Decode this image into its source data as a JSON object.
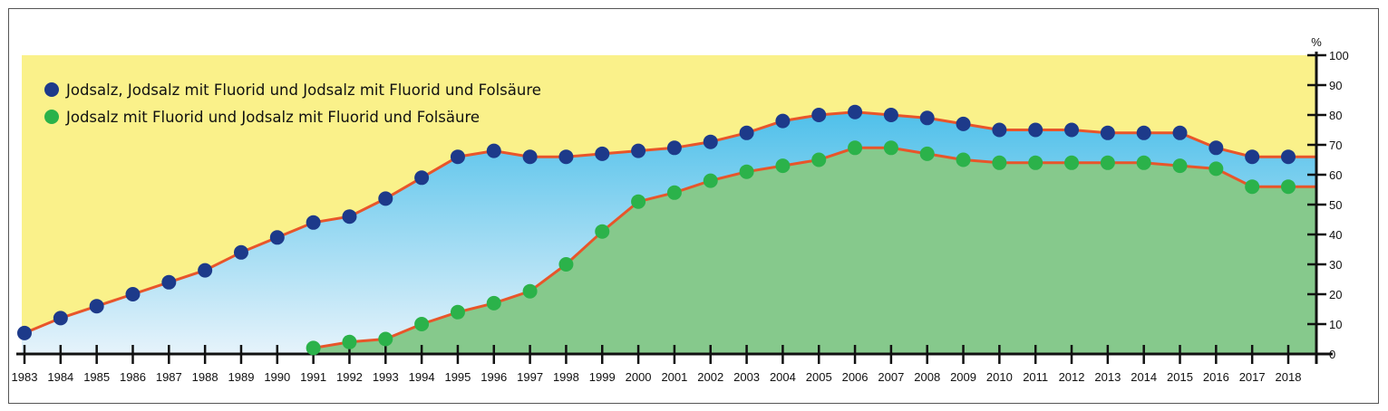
{
  "chart_data": {
    "type": "area",
    "title": "",
    "xlabel": "",
    "ylabel": "%",
    "ylim": [
      0,
      100
    ],
    "yticks": [
      0,
      10,
      20,
      30,
      40,
      50,
      60,
      70,
      80,
      90,
      100
    ],
    "legend_position": "top-left",
    "categories": [
      "1983",
      "1984",
      "1985",
      "1986",
      "1987",
      "1988",
      "1989",
      "1990",
      "1991",
      "1992",
      "1993",
      "1994",
      "1995",
      "1996",
      "1997",
      "1998",
      "1999",
      "2000",
      "2001",
      "2002",
      "2003",
      "2004",
      "2005",
      "2006",
      "2007",
      "2008",
      "2009",
      "2010",
      "2011",
      "2012",
      "2013",
      "2014",
      "2015",
      "2016",
      "2017",
      "2018"
    ],
    "series": [
      {
        "name": "Jodsalz, Jodsalz mit Fluorid und Jodsalz mit Fluorid und Folsäure",
        "color": "#1d3a8a",
        "fill": "#5bc4ea",
        "values": [
          7,
          12,
          16,
          20,
          24,
          28,
          34,
          39,
          44,
          46,
          52,
          59,
          66,
          68,
          66,
          66,
          67,
          68,
          69,
          71,
          74,
          78,
          80,
          81,
          80,
          79,
          77,
          75,
          75,
          75,
          74,
          74,
          74,
          69,
          66,
          66
        ]
      },
      {
        "name": "Jodsalz mit Fluorid und Jodsalz mit Fluorid und Folsäure",
        "color": "#2bb24a",
        "fill": "#86c98c",
        "values": [
          null,
          null,
          null,
          null,
          null,
          null,
          null,
          null,
          2,
          4,
          5,
          10,
          14,
          17,
          21,
          30,
          41,
          51,
          54,
          58,
          61,
          63,
          65,
          69,
          69,
          67,
          65,
          64,
          64,
          64,
          64,
          64,
          63,
          62,
          56,
          56
        ]
      }
    ],
    "line_color": "#e8552a",
    "background_color": "#faf18a"
  }
}
